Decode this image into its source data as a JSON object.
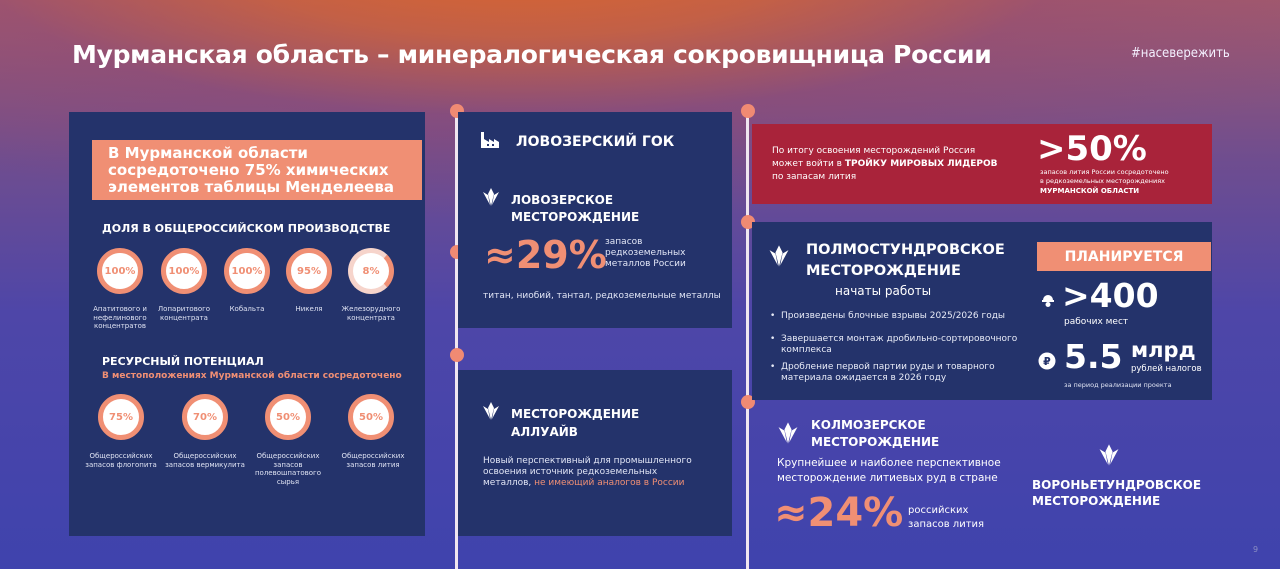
{
  "header": {
    "title": "Мурманская область – минералогическая сокровищница России",
    "hashtag": "#насевережить"
  },
  "left_panel": {
    "banner": "В Мурманской области сосредоточено 75% химических элементов таблицы Менделеева",
    "production_heading": "ДОЛЯ В ОБЩЕРОССИЙСКОМ ПРОИЗВОДСТВЕ",
    "production": [
      {
        "value": "100%",
        "label": "Апатитового и нефелинового концентратов"
      },
      {
        "value": "100%",
        "label": "Лопаритового концентрата"
      },
      {
        "value": "100%",
        "label": "Кобальта"
      },
      {
        "value": "95%",
        "label": "Никеля"
      },
      {
        "value": "8%",
        "label": "Железорудного концентрата"
      }
    ],
    "resource_heading": "РЕСУРСНЫЙ ПОТЕНЦИАЛ",
    "resource_subheading": "В местоположениях Мурманской области сосредоточено",
    "resources": [
      {
        "value": "75%",
        "label": "Общероссийских запасов флогопита"
      },
      {
        "value": "70%",
        "label": "Общероссийских запасов вермикулита"
      },
      {
        "value": "50%",
        "label": "Общероссийских запасов полевошпатового сырья"
      },
      {
        "value": "50%",
        "label": "Общероссийских запасов лития"
      }
    ]
  },
  "lovozero": {
    "gok_title": "ЛОВОЗЕРСКИЙ ГОК",
    "deposit_title_1": "ЛОВОЗЕРСКОЕ",
    "deposit_title_2": "МЕСТОРОЖДЕНИЕ",
    "big_value": "≈29%",
    "value_caption": "запасов редкоземельных металлов России",
    "metals": "титан, ниобий, тантал, редкоземельные металлы"
  },
  "alluaiv": {
    "title_1": "МЕСТОРОЖДЕНИЕ",
    "title_2": "АЛЛУАЙВ",
    "desc": "Новый перспективный для промышленного освоения источник редкоземельных металлов,",
    "desc_accent": "не имеющий аналогов в России"
  },
  "lithium_banner": {
    "text_1": "По итогу освоения месторождений Россия",
    "text_2a": "может войти в",
    "text_2b": "ТРОЙКУ МИРОВЫХ ЛИДЕРОВ",
    "text_3": "по запасам лития",
    "big_value": ">50%",
    "caption_1": "запасов лития России сосредоточено",
    "caption_2": "в редкоземельных месторождениях",
    "caption_3": "МУРМАНСКОЙ ОБЛАСТИ"
  },
  "polmos": {
    "title_1": "ПОЛМОСТУНДРОВСКОЕ",
    "title_2": "МЕСТОРОЖДЕНИЕ",
    "status": "начаты работы",
    "bullets": [
      "Произведены блочные взрывы 2025/2026 годы",
      "Завершается монтаж дробильно-сортировочного комплекса",
      "Дробление первой партии руды и товарного материала ожидается в 2026 году"
    ],
    "plan_label": "ПЛАНИРУЕТСЯ",
    "jobs_value": ">400",
    "jobs_caption": "рабочих мест",
    "tax_value": "5.5",
    "tax_unit": "млрд",
    "tax_caption": "рублей налогов",
    "tax_period": "за период реализации проекта"
  },
  "kolmoz": {
    "title_1": "КОЛМОЗЕРСКОЕ",
    "title_2": "МЕСТОРОЖДЕНИЕ",
    "desc": "Крупнейшее и наиболее перспективное месторождение литиевых руд в стране",
    "big_value": "≈24%",
    "value_caption": "российских запасов лития"
  },
  "voron": {
    "title_1": "ВОРОНЬЕТУНДРОВСКОЕ",
    "title_2": "МЕСТОРОЖДЕНИЕ"
  },
  "page_number": "9",
  "colors": {
    "accent": "#f08f74",
    "panel": "#24336b",
    "red": "#a9233a"
  }
}
